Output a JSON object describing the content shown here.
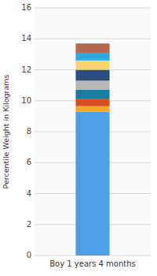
{
  "chart_data": {
    "type": "bar",
    "stacked": true,
    "categories": [
      "Boy 1 years 4 months"
    ],
    "series": [
      {
        "values": [
          9.3
        ],
        "color": "#4D9FE8"
      },
      {
        "values": [
          0.35
        ],
        "color": "#F5A623"
      },
      {
        "values": [
          0.45
        ],
        "color": "#D94E1F"
      },
      {
        "values": [
          0.6
        ],
        "color": "#1A7BA0"
      },
      {
        "values": [
          0.6
        ],
        "color": "#B8B8B8"
      },
      {
        "values": [
          0.7
        ],
        "color": "#2B4C7E"
      },
      {
        "values": [
          0.6
        ],
        "color": "#F9D56E"
      },
      {
        "values": [
          0.5
        ],
        "color": "#29ABE2"
      },
      {
        "values": [
          0.6
        ],
        "color": "#B5694D"
      }
    ],
    "ylabel": "Percentile Weight in Kilograms",
    "ylim": [
      0,
      16
    ],
    "yticks": [
      0,
      2,
      4,
      6,
      8,
      10,
      12,
      14,
      16
    ],
    "grid": true
  }
}
